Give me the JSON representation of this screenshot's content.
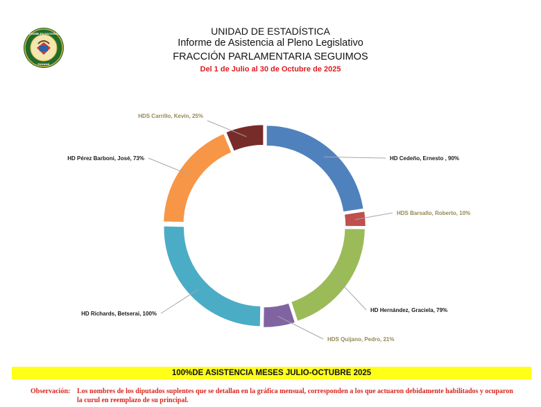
{
  "header": {
    "logo_icon": "asamblea-nacional-seal",
    "logo_text_top": "ASAMBLEA NACIONAL",
    "logo_text_bottom": "PANAMÁ",
    "line1": "UNIDAD DE ESTADÍSTICA",
    "line2": "Informe de Asistencia al Pleno Legislativo",
    "line3": "FRACCIÓN PARLAMENTARIA SEGUIMOS",
    "date_range": "Del 1 de Julio al 30 de Octubre de 2025"
  },
  "chart_data": {
    "type": "pie",
    "variant": "doughnut",
    "title": "",
    "slices": [
      {
        "label": "HD Cedeño, Ernesto , 90%",
        "value": 90,
        "color": "#4f81bd",
        "label_color": "#1a1a1a"
      },
      {
        "label": "HDS Barsallo, Roberto, 10%",
        "value": 10,
        "color": "#c0504d",
        "label_color": "#938953"
      },
      {
        "label": "HD Hernández, Graciela, 79%",
        "value": 79,
        "color": "#9bbb59",
        "label_color": "#1a1a1a"
      },
      {
        "label": "HDS Quijano, Pedro, 21%",
        "value": 21,
        "color": "#8064a2",
        "label_color": "#938953"
      },
      {
        "label": "HD Richards, Betserai, 100%",
        "value": 100,
        "color": "#4bacc6",
        "label_color": "#1a1a1a"
      },
      {
        "label": "HD Pérez Barboni, José, 73%",
        "value": 73,
        "color": "#f79646",
        "label_color": "#1a1a1a"
      },
      {
        "label": "HDS Carrillo, Kevin, 25%",
        "value": 25,
        "color": "#772c2a",
        "label_color": "#938953"
      }
    ]
  },
  "banner": "100%DE ASISTENCIA MESES JULIO-OCTUBRE 2025",
  "observation": {
    "label": "Observación:",
    "text": "Los nombres de los diputados suplentes que se detallan en la gráfica mensual, corresponden a  los que actuaron debidamente habilitados y ocuparon la curul en reemplazo de su principal."
  }
}
